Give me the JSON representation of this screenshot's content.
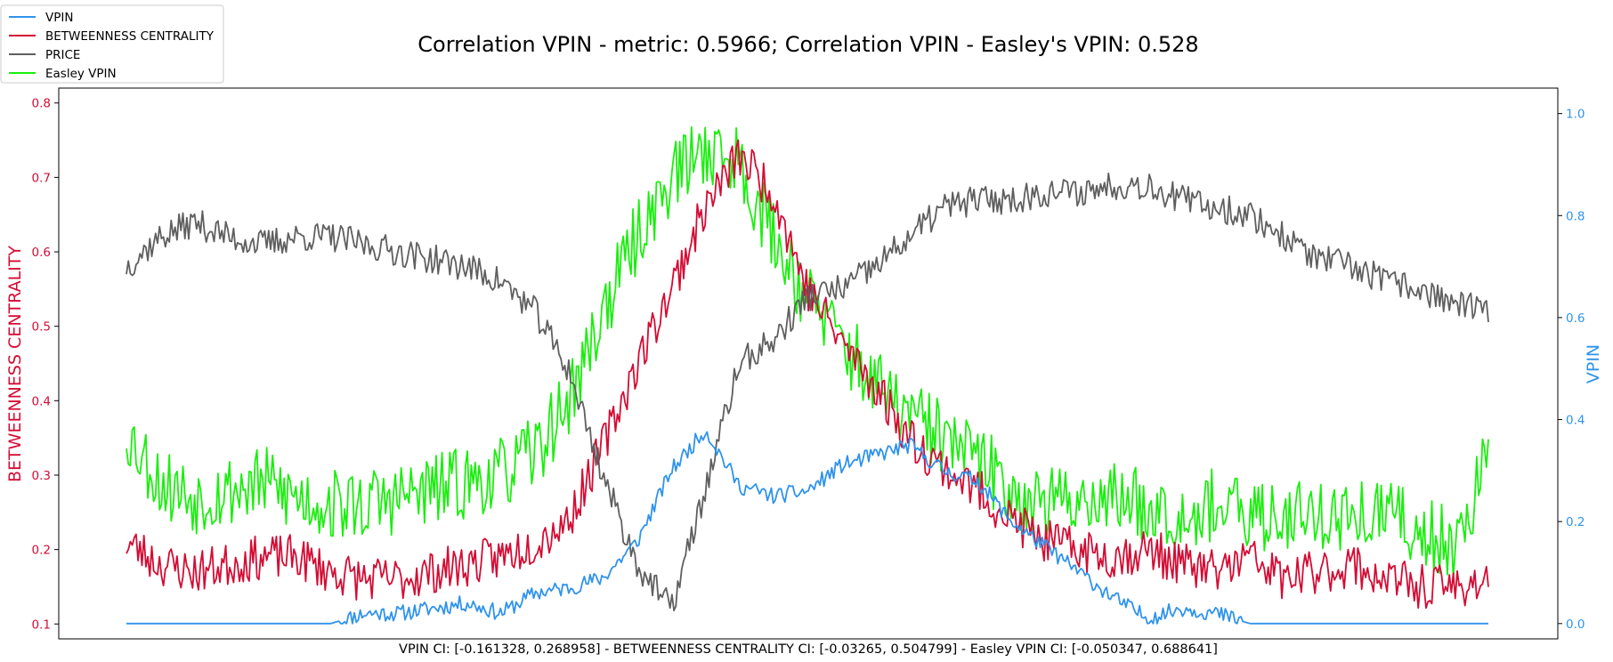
{
  "chart_data": {
    "type": "line",
    "title": "Correlation VPIN - metric: 0.5966; Correlation VPIN - Easley's VPIN: 0.528",
    "footer": "VPIN CI: [-0.161328, 0.268958] - BETWEENNESS CENTRALITY CI: [-0.03265, 0.504799] - Easley VPIN CI: [-0.050347, 0.688641]",
    "ylabel_left": "BETWEENNESS CENTRALITY",
    "ylabel_right": "VPIN",
    "ylim_left": [
      0.08,
      0.82
    ],
    "ylim_right": [
      -0.03,
      1.05
    ],
    "yticks_left": [
      "0.1",
      "0.2",
      "0.3",
      "0.4",
      "0.5",
      "0.6",
      "0.7",
      "0.8"
    ],
    "yticks_right": [
      "0.0",
      "0.2",
      "0.4",
      "0.6",
      "0.8",
      "1.0"
    ],
    "x": {
      "start": 0,
      "end": 1000,
      "step": 25
    },
    "legend_position": "top-left",
    "colors": {
      "VPIN": "#2f93ec",
      "BETWEENNESS CENTRALITY": "#d40c34",
      "PRICE": "#5f5f5f",
      "Easley VPIN": "#1aef0e",
      "left_axis": "#d40c34",
      "right_axis": "#2f93ec"
    },
    "series": [
      {
        "name": "VPIN",
        "axis": "right",
        "values": [
          0.0,
          0.0,
          0.0,
          0.0,
          0.0,
          0.0,
          0.0,
          0.02,
          0.02,
          0.03,
          0.04,
          0.02,
          0.06,
          0.07,
          0.09,
          0.16,
          0.3,
          0.38,
          0.27,
          0.25,
          0.26,
          0.31,
          0.33,
          0.35,
          0.3,
          0.28,
          0.2,
          0.15,
          0.1,
          0.05,
          0.01,
          0.03,
          0.02,
          0.0,
          0.0,
          0.0,
          0.0,
          0.0,
          0.0,
          0.0,
          0.0
        ]
      },
      {
        "name": "BETWEENNESS CENTRALITY",
        "axis": "left",
        "values": [
          0.21,
          0.18,
          0.17,
          0.18,
          0.19,
          0.19,
          0.17,
          0.16,
          0.16,
          0.17,
          0.18,
          0.19,
          0.21,
          0.24,
          0.34,
          0.45,
          0.55,
          0.66,
          0.73,
          0.68,
          0.55,
          0.48,
          0.42,
          0.35,
          0.31,
          0.28,
          0.24,
          0.21,
          0.2,
          0.19,
          0.2,
          0.18,
          0.17,
          0.19,
          0.16,
          0.17,
          0.18,
          0.16,
          0.15,
          0.15,
          0.16
        ]
      },
      {
        "name": "PRICE",
        "axis": "left",
        "values": [
          0.58,
          0.62,
          0.64,
          0.62,
          0.61,
          0.62,
          0.62,
          0.61,
          0.6,
          0.59,
          0.58,
          0.56,
          0.52,
          0.44,
          0.3,
          0.18,
          0.12,
          0.28,
          0.45,
          0.48,
          0.54,
          0.55,
          0.58,
          0.62,
          0.66,
          0.67,
          0.67,
          0.68,
          0.68,
          0.69,
          0.69,
          0.67,
          0.66,
          0.65,
          0.62,
          0.59,
          0.58,
          0.56,
          0.55,
          0.53,
          0.52
        ]
      },
      {
        "name": "Easley VPIN",
        "axis": "left",
        "values": [
          0.36,
          0.29,
          0.27,
          0.28,
          0.29,
          0.27,
          0.26,
          0.26,
          0.27,
          0.28,
          0.29,
          0.3,
          0.33,
          0.4,
          0.52,
          0.62,
          0.7,
          0.74,
          0.72,
          0.62,
          0.54,
          0.48,
          0.42,
          0.38,
          0.35,
          0.32,
          0.28,
          0.26,
          0.27,
          0.27,
          0.26,
          0.25,
          0.26,
          0.24,
          0.25,
          0.25,
          0.24,
          0.25,
          0.22,
          0.21,
          0.32
        ]
      }
    ]
  }
}
